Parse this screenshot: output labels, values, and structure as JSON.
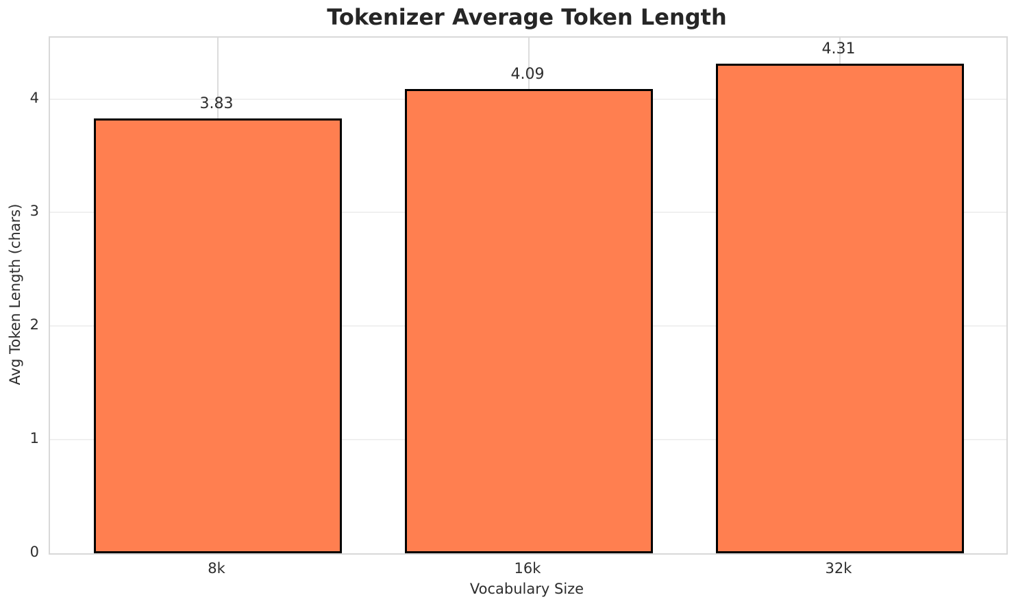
{
  "chart_data": {
    "type": "bar",
    "title": "Tokenizer Average Token Length",
    "xlabel": "Vocabulary Size",
    "ylabel": "Avg Token Length (chars)",
    "categories": [
      "8k",
      "16k",
      "32k"
    ],
    "values": [
      3.83,
      4.09,
      4.31
    ],
    "value_labels": [
      "3.83",
      "4.09",
      "4.31"
    ],
    "yticks": [
      "0",
      "1",
      "2",
      "3",
      "4"
    ],
    "ytick_values": [
      0,
      1,
      2,
      3,
      4
    ],
    "ylim": [
      0,
      4.54
    ],
    "grid": true,
    "legend_position": "none",
    "bar_color": "#ff7f50",
    "bar_edge_color": "#000000"
  },
  "colors": {
    "background": "#ffffff",
    "text": "#2d2d2d",
    "title_text": "#262626",
    "horizontal_gridline": "#f0f0f0",
    "vertical_gridline": "#dcdcdc",
    "spine": "#d8d8d8"
  }
}
